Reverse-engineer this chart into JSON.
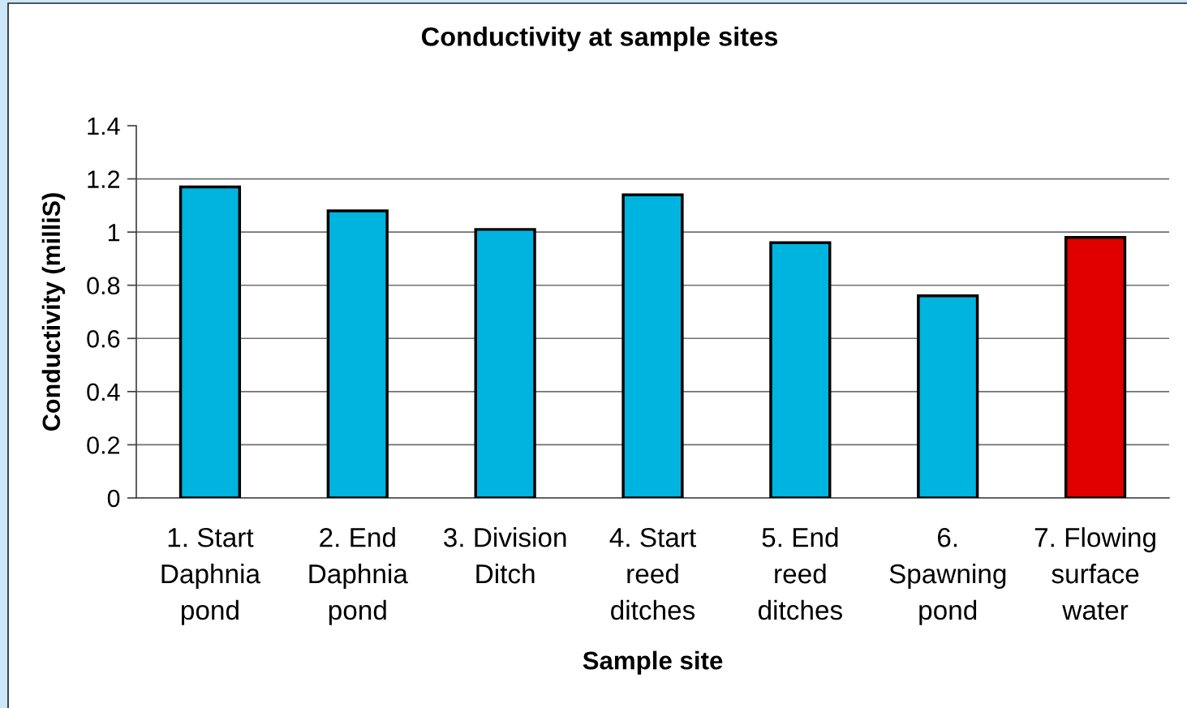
{
  "chart_data": {
    "type": "bar",
    "title": "Conductivity at sample sites",
    "xlabel": "Sample site",
    "ylabel": "Conductivity (milliS)",
    "categories": [
      "1. Start\nDaphnia\npond",
      "2. End\nDaphnia\npond",
      "3. Division\nDitch",
      "4. Start\nreed\nditches",
      "5. End\nreed\nditches",
      "6.\nSpawning\npond",
      "7. Flowing\nsurface\nwater"
    ],
    "values": [
      1.17,
      1.08,
      1.01,
      1.14,
      0.96,
      0.76,
      0.98
    ],
    "colors": [
      "#00b4e0",
      "#00b4e0",
      "#00b4e0",
      "#00b4e0",
      "#00b4e0",
      "#00b4e0",
      "#e00000"
    ],
    "ylim": [
      0,
      1.4
    ],
    "yticks": [
      0,
      0.2,
      0.4,
      0.6,
      0.8,
      1,
      1.2,
      1.4
    ],
    "grid": "y"
  }
}
